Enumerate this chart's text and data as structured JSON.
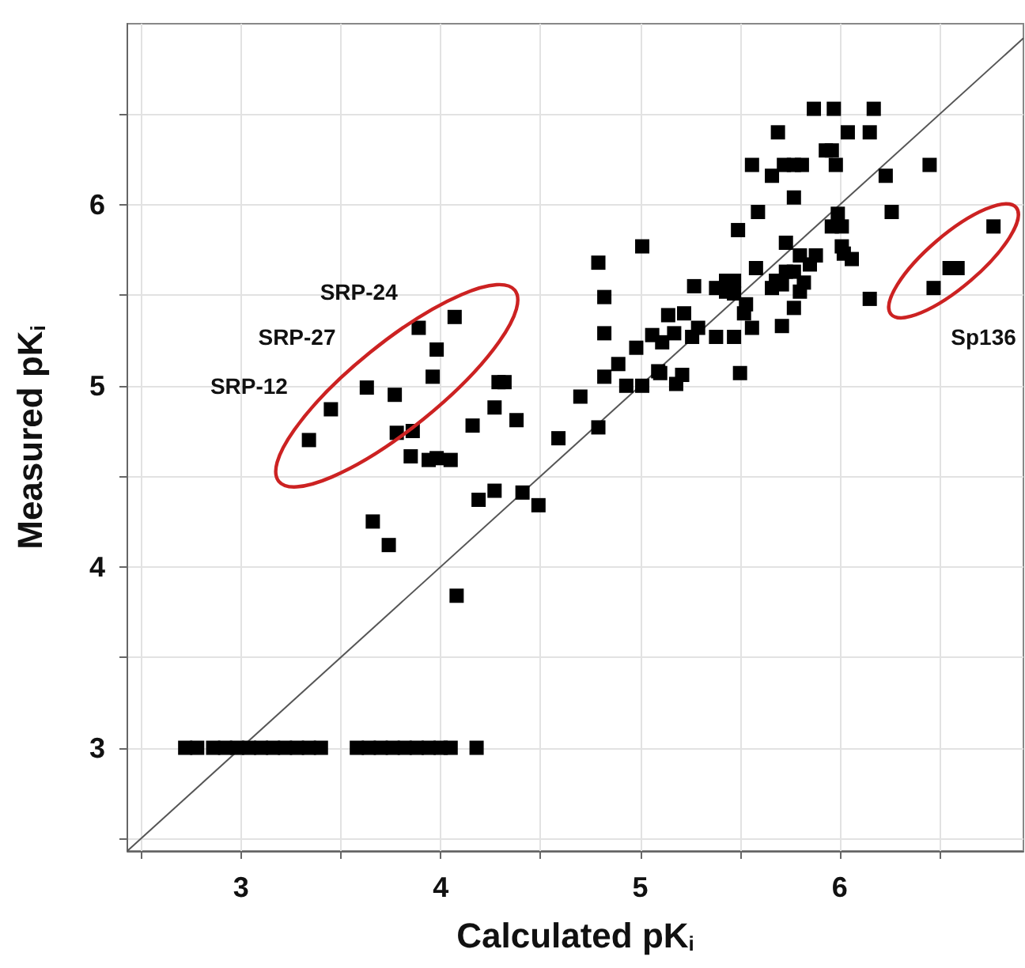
{
  "chart_data": {
    "type": "scatter",
    "xlabel": "Calculated pK$_{i}$",
    "ylabel": "Measured pK$_{i}$",
    "xlim": [
      2.43,
      6.92
    ],
    "ylim": [
      2.43,
      7.0
    ],
    "xticks": [
      {
        "value": 2.5,
        "label": null
      },
      3,
      {
        "value": 3.5,
        "label": null
      },
      4,
      {
        "value": 4.5,
        "label": null
      },
      5,
      {
        "value": 5.5,
        "label": null
      },
      6,
      {
        "value": 6.5,
        "label": null
      }
    ],
    "yticks": [
      {
        "value": 2.5,
        "label": null
      },
      3,
      {
        "value": 3.5,
        "label": null
      },
      4,
      {
        "value": 4.5,
        "label": null
      },
      5,
      {
        "value": 5.5,
        "label": null
      },
      6,
      {
        "value": 6.5,
        "label": null
      }
    ],
    "grid": true,
    "marker": "square",
    "annotations": [
      "SRP-24",
      "SRP-27",
      "SRP-12",
      "Sp136"
    ],
    "series": [
      {
        "color": "#000000",
        "x": [
          2.72,
          2.78,
          2.86,
          2.92,
          2.98,
          3.04,
          3.1,
          3.16,
          3.22,
          3.28,
          3.34,
          3.4,
          3.58,
          3.64,
          3.7,
          3.76,
          3.82,
          3.88,
          3.94,
          4.0,
          4.05,
          4.18,
          3.34,
          3.45,
          3.63,
          3.77,
          3.78,
          3.86,
          3.85,
          3.94,
          3.98,
          4.05,
          3.89,
          4.07,
          3.98,
          3.96,
          4.29,
          4.32,
          4.27,
          4.16,
          4.38,
          4.19,
          4.27,
          4.41,
          4.49,
          3.66,
          3.74,
          4.08,
          4.59,
          4.7,
          4.79,
          4.79,
          4.82,
          4.82,
          4.82,
          4.89,
          4.93,
          4.98,
          5.01,
          5.01,
          5.06,
          5.09,
          5.1,
          5.11,
          5.14,
          5.17,
          5.18,
          5.21,
          5.22,
          5.26,
          5.27,
          5.29,
          5.38,
          5.38,
          5.43,
          5.47,
          5.43,
          5.47,
          5.47,
          5.5,
          5.49,
          5.53,
          5.52,
          5.56,
          5.56,
          5.58,
          5.59,
          5.66,
          5.69,
          5.66,
          5.68,
          5.71,
          5.71,
          5.73,
          5.72,
          5.77,
          5.81,
          5.77,
          5.77,
          5.73,
          5.77,
          5.8,
          5.82,
          5.8,
          5.85,
          5.88,
          5.87,
          5.97,
          5.93,
          5.96,
          5.98,
          5.99,
          5.96,
          6.01,
          6.01,
          6.02,
          6.06,
          6.04,
          6.17,
          6.15,
          6.23,
          6.26,
          6.15,
          6.45,
          6.47,
          6.55,
          6.59,
          6.77
        ],
        "values": [
          3,
          3,
          3,
          3,
          3,
          3,
          3,
          3,
          3,
          3,
          3,
          3,
          3,
          3,
          3,
          3,
          3,
          3,
          3,
          3,
          3,
          3,
          4.7,
          4.87,
          4.99,
          4.95,
          4.74,
          4.75,
          4.61,
          4.59,
          4.6,
          4.59,
          5.32,
          5.38,
          5.2,
          5.05,
          5.02,
          5.02,
          4.88,
          4.78,
          4.81,
          4.37,
          4.42,
          4.41,
          4.34,
          4.25,
          4.12,
          3.84,
          4.71,
          4.94,
          4.77,
          5.68,
          5.49,
          5.29,
          5.05,
          5.12,
          5.0,
          5.21,
          5.0,
          5.77,
          5.28,
          5.08,
          5.07,
          5.24,
          5.39,
          5.29,
          5.01,
          5.06,
          5.4,
          5.27,
          5.55,
          5.32,
          5.27,
          5.54,
          5.58,
          5.58,
          5.52,
          5.51,
          5.27,
          5.07,
          5.86,
          5.45,
          5.4,
          5.32,
          6.22,
          5.65,
          5.96,
          6.16,
          6.4,
          5.54,
          5.58,
          5.56,
          5.33,
          5.79,
          6.22,
          6.22,
          6.22,
          6.04,
          5.43,
          5.63,
          5.63,
          5.52,
          5.57,
          5.72,
          5.67,
          5.72,
          6.53,
          6.53,
          6.3,
          6.3,
          6.22,
          5.95,
          5.88,
          5.88,
          5.77,
          5.73,
          5.7,
          6.4,
          6.53,
          6.4,
          6.16,
          5.96,
          5.48,
          6.22,
          5.54,
          5.65,
          5.65,
          5.88
        ]
      },
      {
        "type": "line",
        "color": "#555555",
        "marker": "none",
        "x": [
          2.43,
          6.92
        ],
        "values": [
          2.43,
          6.92
        ]
      }
    ]
  }
}
